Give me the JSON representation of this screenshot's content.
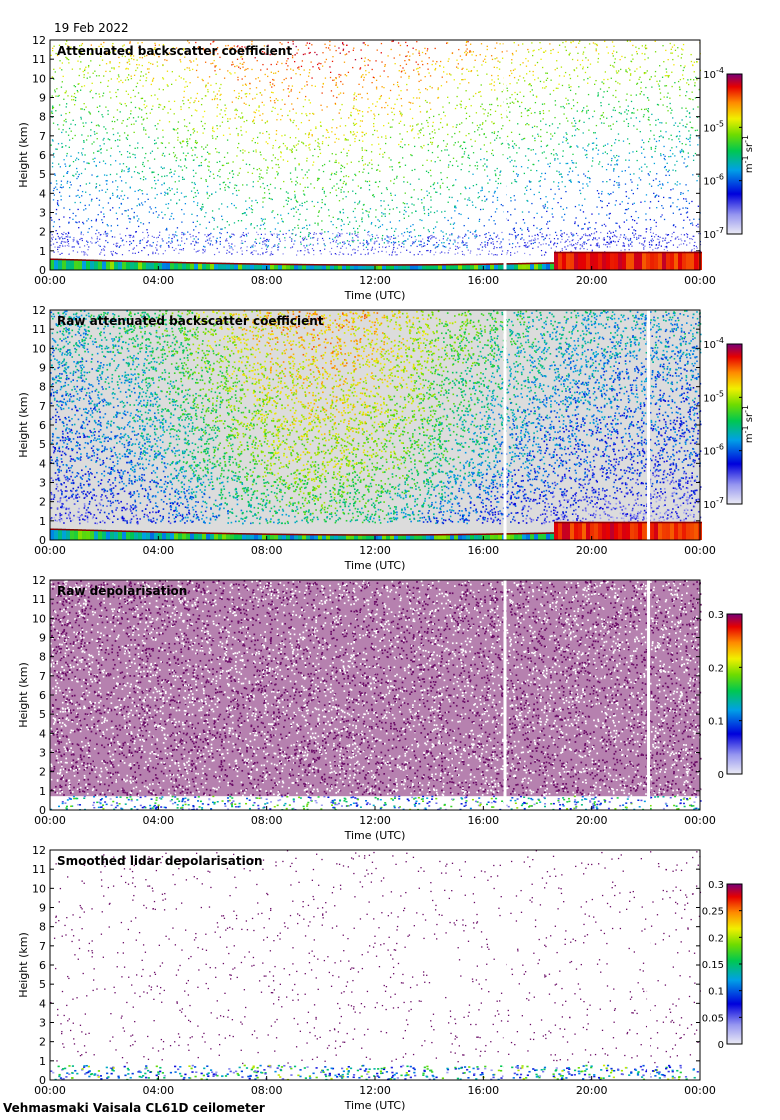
{
  "date": "19 Feb 2022",
  "footer": "Vehmasmaki Vaisala CL61D ceilometer",
  "chart_data": [
    {
      "type": "heatmap",
      "title": "Attenuated backscatter coefficient",
      "xlabel": "Time (UTC)",
      "ylabel": "Height (km)",
      "x_ticks": [
        "00:00",
        "04:00",
        "08:00",
        "12:00",
        "16:00",
        "20:00",
        "00:00"
      ],
      "y_ticks": [
        0,
        1,
        2,
        3,
        4,
        5,
        6,
        7,
        8,
        9,
        10,
        11,
        12
      ],
      "ylim": [
        0,
        12
      ],
      "colorbar": {
        "scale": "log",
        "range": [
          1e-07,
          0.0001
        ],
        "tick_labels": [
          "10-7",
          "10-6",
          "10-5",
          "10-4"
        ],
        "unit": "m-1 sr-1"
      },
      "gaps_hours": [
        16.8
      ],
      "style": "sparse"
    },
    {
      "type": "heatmap",
      "title": "Raw attenuated backscatter coefficient",
      "xlabel": "Time (UTC)",
      "ylabel": "Height (km)",
      "x_ticks": [
        "00:00",
        "04:00",
        "08:00",
        "12:00",
        "16:00",
        "20:00",
        "00:00"
      ],
      "y_ticks": [
        0,
        1,
        2,
        3,
        4,
        5,
        6,
        7,
        8,
        9,
        10,
        11,
        12
      ],
      "ylim": [
        0,
        12
      ],
      "colorbar": {
        "scale": "log",
        "range": [
          1e-07,
          0.0001
        ],
        "tick_labels": [
          "10-7",
          "10-6",
          "10-5",
          "10-4"
        ],
        "unit": "m-1 sr-1"
      },
      "gaps_hours": [
        16.8,
        22.1
      ],
      "style": "raw"
    },
    {
      "type": "heatmap",
      "title": "Raw depolarisation",
      "xlabel": "Time (UTC)",
      "ylabel": "Height (km)",
      "x_ticks": [
        "00:00",
        "04:00",
        "08:00",
        "12:00",
        "16:00",
        "20:00",
        "00:00"
      ],
      "y_ticks": [
        0,
        1,
        2,
        3,
        4,
        5,
        6,
        7,
        8,
        9,
        10,
        11,
        12
      ],
      "ylim": [
        0,
        12
      ],
      "colorbar": {
        "scale": "linear",
        "range": [
          0,
          0.3
        ],
        "tick_labels": [
          "0",
          "0.1",
          "0.2",
          "0.3"
        ],
        "unit": ""
      },
      "gaps_hours": [
        16.8,
        22.1
      ],
      "style": "depol"
    },
    {
      "type": "heatmap",
      "title": "Smoothed lidar depolarisation",
      "xlabel": "Time (UTC)",
      "ylabel": "Height (km)",
      "x_ticks": [
        "00:00",
        "04:00",
        "08:00",
        "12:00",
        "16:00",
        "20:00",
        "00:00"
      ],
      "y_ticks": [
        0,
        1,
        2,
        3,
        4,
        5,
        6,
        7,
        8,
        9,
        10,
        11,
        12
      ],
      "ylim": [
        0,
        12
      ],
      "colorbar": {
        "scale": "linear",
        "range": [
          0,
          0.3
        ],
        "tick_labels": [
          "0",
          "0.05",
          "0.1",
          "0.15",
          "0.2",
          "0.25",
          "0.3"
        ],
        "unit": ""
      },
      "gaps_hours": [
        16.8,
        22.1
      ],
      "style": "smooth"
    }
  ]
}
